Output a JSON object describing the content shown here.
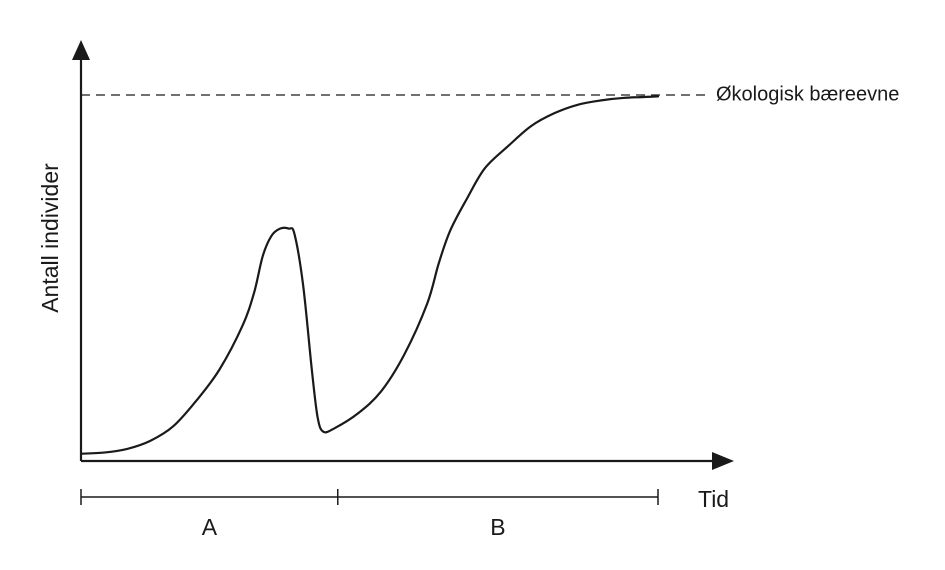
{
  "chart_data": {
    "type": "line",
    "title": "",
    "ylabel": "Antall individer",
    "xlabel": "Tid",
    "grid": false,
    "xlim": [
      0,
      100
    ],
    "ylim": [
      0,
      100
    ],
    "carrying_capacity": {
      "label": "Økologisk bæreevne",
      "value": 100
    },
    "series": [
      {
        "values": [
          [
            0,
            2
          ],
          [
            4,
            2.3
          ],
          [
            8,
            3.3
          ],
          [
            12,
            5.5
          ],
          [
            16,
            9.5
          ],
          [
            20,
            16.5
          ],
          [
            24,
            25
          ],
          [
            28,
            37
          ],
          [
            30,
            46
          ],
          [
            31.5,
            56
          ],
          [
            33,
            61.5
          ],
          [
            34.5,
            63.5
          ],
          [
            36,
            63.5
          ],
          [
            37,
            62
          ],
          [
            38.5,
            48
          ],
          [
            40,
            25
          ],
          [
            41,
            12
          ],
          [
            42,
            8
          ],
          [
            44,
            9
          ],
          [
            48,
            13
          ],
          [
            52,
            19
          ],
          [
            56,
            29
          ],
          [
            60,
            43
          ],
          [
            62,
            54
          ],
          [
            64,
            63
          ],
          [
            67,
            72
          ],
          [
            70,
            80
          ],
          [
            74,
            86
          ],
          [
            78,
            91.5
          ],
          [
            82,
            95
          ],
          [
            86,
            97.3
          ],
          [
            90,
            98.5
          ],
          [
            94,
            99.2
          ],
          [
            100,
            99.6
          ]
        ]
      }
    ],
    "periods": [
      {
        "label": "A",
        "from": 0,
        "to": 44.5
      },
      {
        "label": "B",
        "from": 44.5,
        "to": 100
      }
    ]
  }
}
